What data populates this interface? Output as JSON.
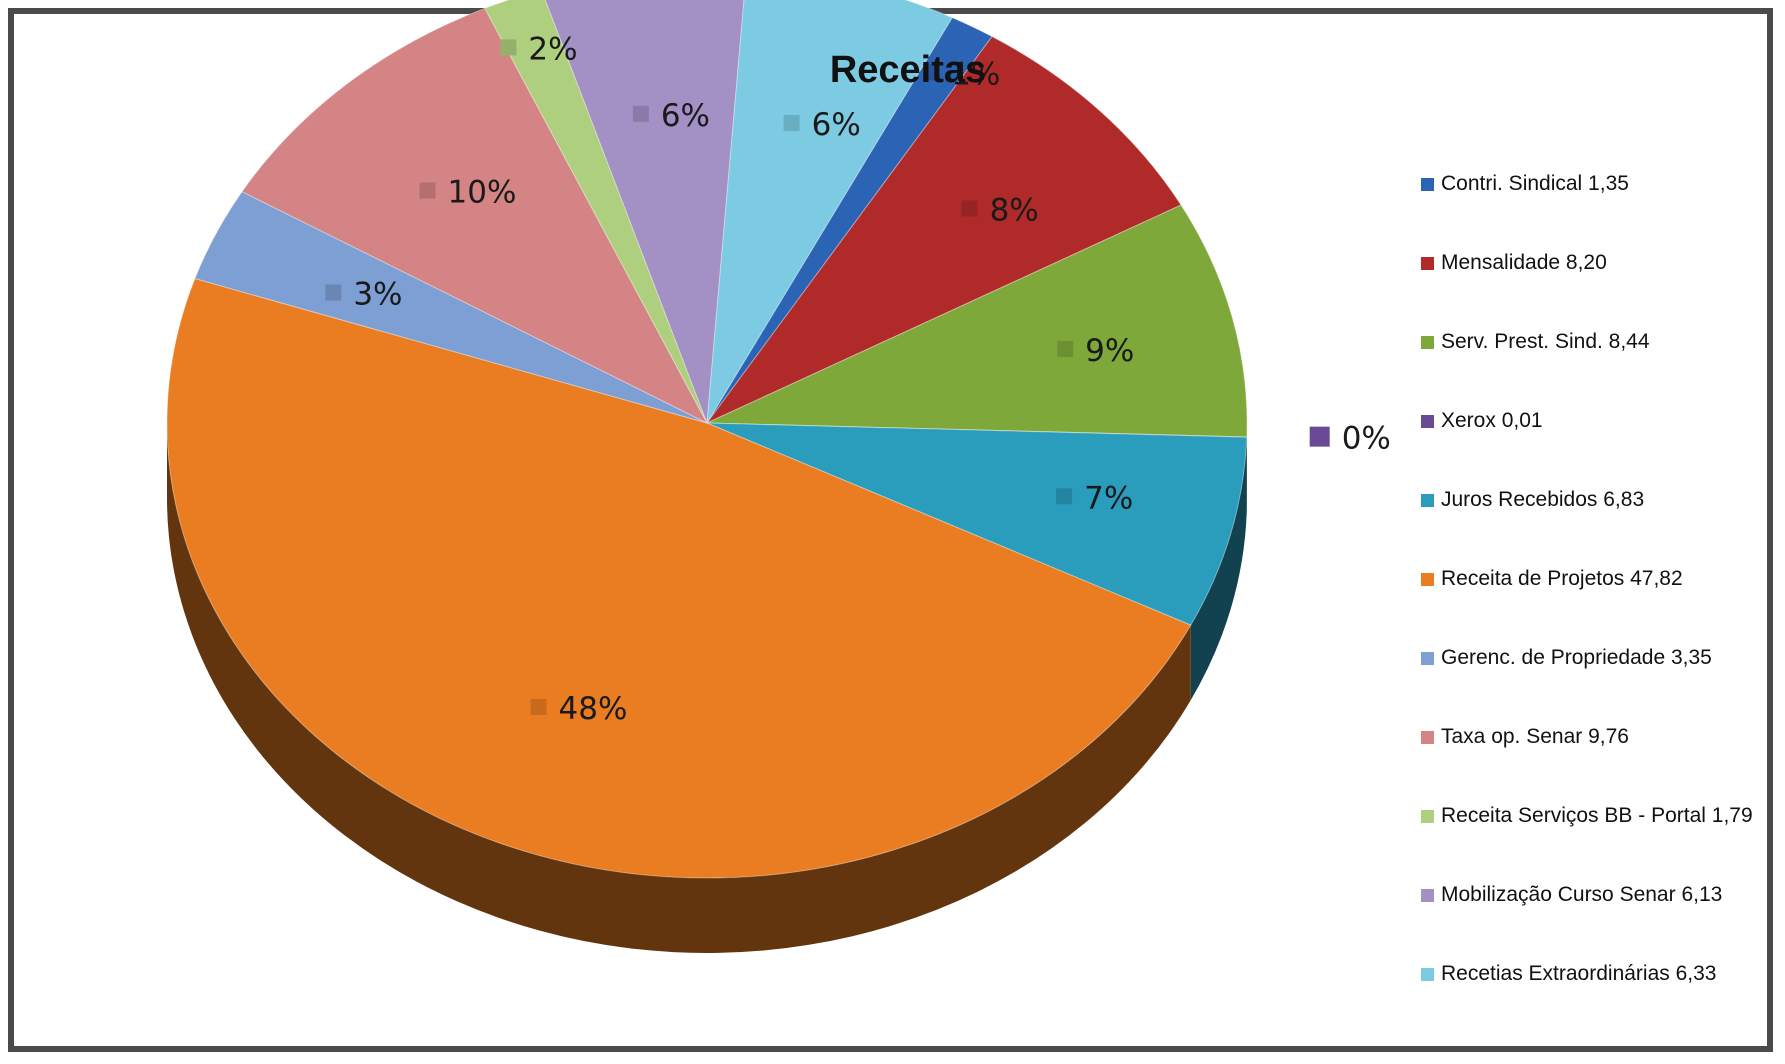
{
  "chart_data": {
    "type": "pie",
    "title": "Receitas",
    "legend_position": "right",
    "slices": [
      {
        "legend": "Contri. Sindical 1,35",
        "value": 1.35,
        "label": "1%",
        "color": "#2b63b5"
      },
      {
        "legend": "Mensalidade 8,20",
        "value": 8.2,
        "label": "8%",
        "color": "#b02a2a"
      },
      {
        "legend": "Serv. Prest. Sind. 8,44",
        "value": 8.44,
        "label": "9%",
        "color": "#7fa83a"
      },
      {
        "legend": "Xerox 0,01",
        "value": 0.01,
        "label": "0%",
        "color": "#6a4a96"
      },
      {
        "legend": "Juros Recebidos 6,83",
        "value": 6.83,
        "label": "7%",
        "color": "#2a9dbd"
      },
      {
        "legend": "Receita de Projetos 47,82",
        "value": 47.82,
        "label": "48%",
        "color": "#ea7d22"
      },
      {
        "legend": "Gerenc. de Propriedade 3,35",
        "value": 3.35,
        "label": "3%",
        "color": "#7d9fd3"
      },
      {
        "legend": "Taxa op. Senar 9,76",
        "value": 9.76,
        "label": "10%",
        "color": "#d48484"
      },
      {
        "legend": "Receita Serviços BB - Portal 1,79",
        "value": 1.79,
        "label": "2%",
        "color": "#aecf7e"
      },
      {
        "legend": "Mobilização Curso Senar 6,13",
        "value": 6.13,
        "label": "6%",
        "color": "#a390c4"
      },
      {
        "legend": "Recetias Extraordinárias 6,33",
        "value": 6.33,
        "label": "6%",
        "color": "#7ccbe3"
      }
    ]
  }
}
